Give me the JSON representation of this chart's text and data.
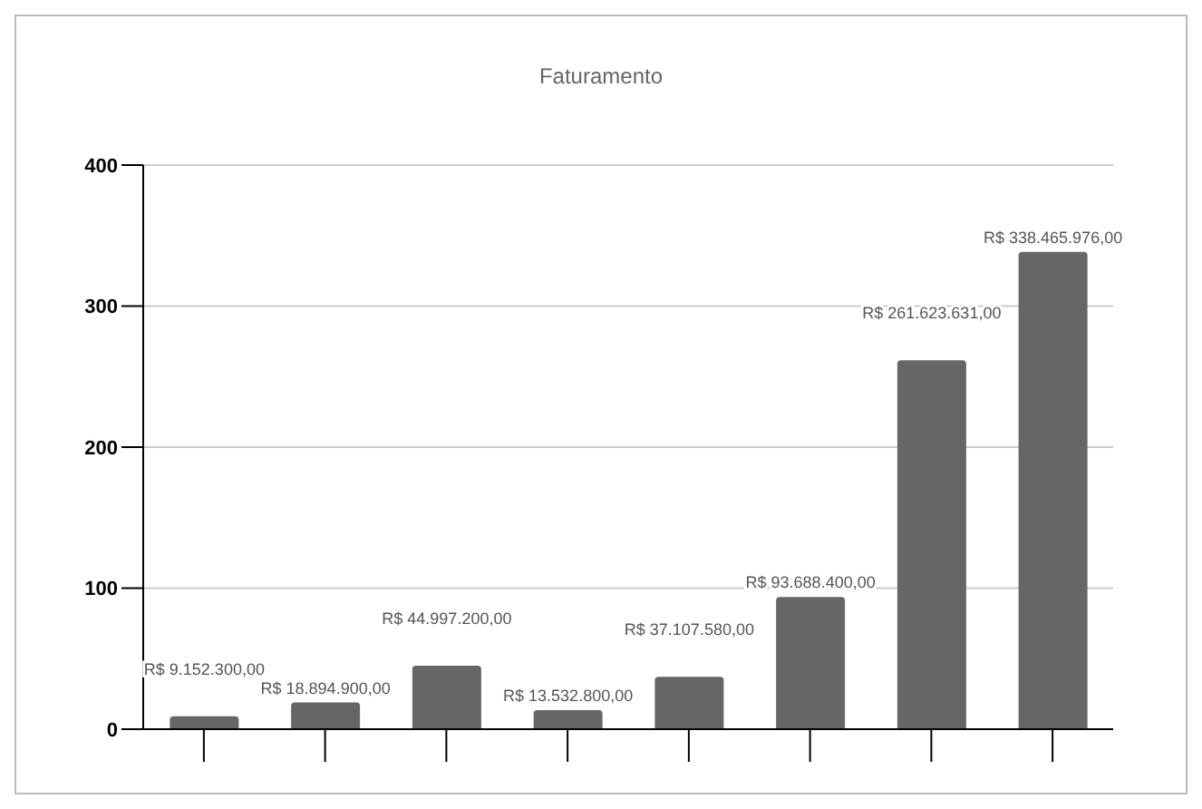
{
  "chart_data": {
    "type": "bar",
    "title": "Faturamento",
    "categories": [
      null,
      null,
      null,
      null,
      null,
      null,
      null,
      null
    ],
    "values": [
      9.1523,
      18.8949,
      44.9972,
      13.5328,
      37.10758,
      93.6884,
      261.623631,
      338.465976
    ],
    "value_labels": [
      "R$ 9.152.300,00",
      "R$ 18.894.900,00",
      "R$ 44.997.200,00",
      "R$ 13.532.800,00",
      "R$ 37.107.580,00",
      "R$ 93.688.400,00",
      "R$ 261.623.631,00",
      "R$ 338.465.976,00"
    ],
    "color": "#666666",
    "ylim": [
      0,
      400
    ],
    "yticks": [
      0,
      100,
      200,
      300,
      400
    ],
    "grid": "y"
  }
}
